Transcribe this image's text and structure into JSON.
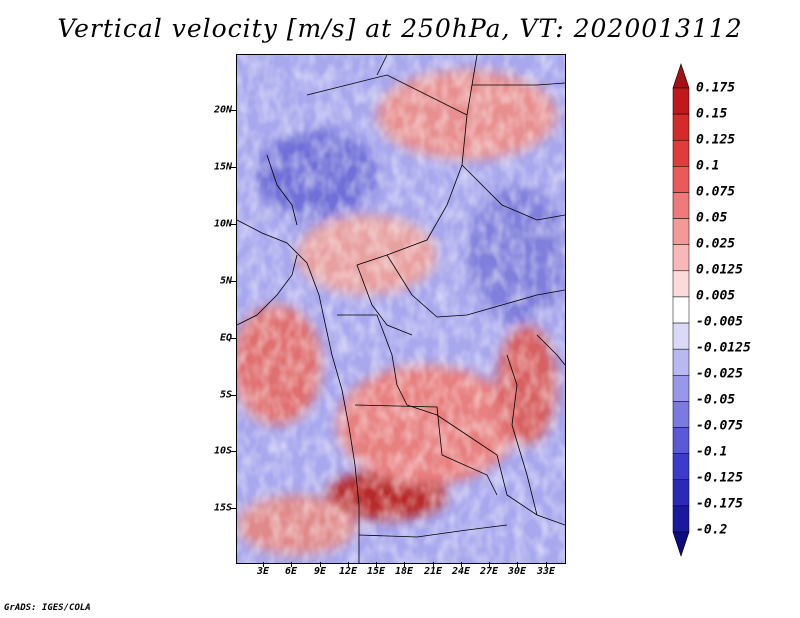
{
  "title": "Vertical velocity [m/s] at 250hPa, VT: 2020013112",
  "credit": "GrADS: IGES/COLA",
  "y_axis": {
    "labels": [
      "20N",
      "15N",
      "10N",
      "5N",
      "EQ",
      "5S",
      "10S",
      "15S"
    ]
  },
  "x_axis": {
    "labels": [
      "3E",
      "6E",
      "9E",
      "12E",
      "15E",
      "18E",
      "21E",
      "24E",
      "27E",
      "30E",
      "33E"
    ]
  },
  "colorbar": {
    "levels": [
      "0.175",
      "0.15",
      "0.125",
      "0.1",
      "0.075",
      "0.05",
      "0.025",
      "0.0125",
      "0.005",
      "-0.005",
      "-0.0125",
      "-0.025",
      "-0.05",
      "-0.075",
      "-0.1",
      "-0.125",
      "-0.175",
      "-0.2"
    ],
    "colors": [
      "#a50f15",
      "#c0181c",
      "#d42a2a",
      "#e03c3c",
      "#ea5a5a",
      "#f07a7a",
      "#f59898",
      "#f9b8b8",
      "#fcdada",
      "#ffffff",
      "#dadaf8",
      "#b8b8f2",
      "#9898ea",
      "#7a7ae0",
      "#5a5ad6",
      "#3c3ccc",
      "#2a2ab8",
      "#1818a0",
      "#0c0c80"
    ]
  },
  "colors": {
    "positive": "#d23c3c",
    "negative": "#5a5ad6",
    "background": "#ffffff"
  }
}
